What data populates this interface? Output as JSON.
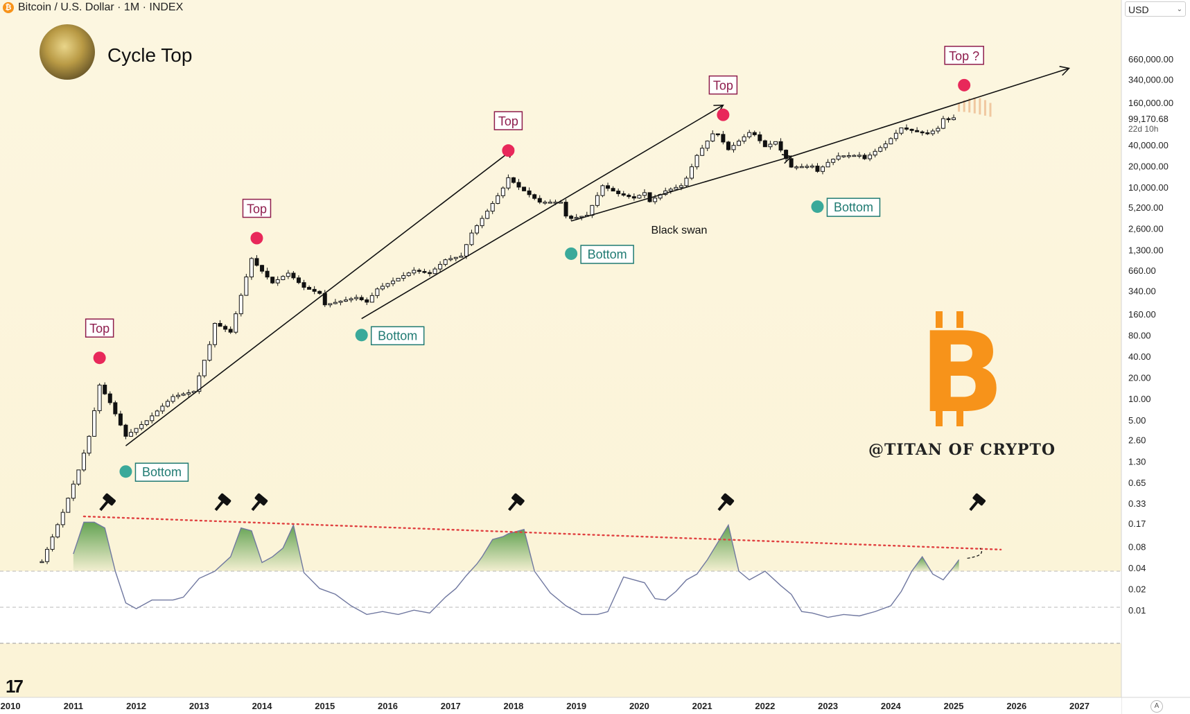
{
  "header": {
    "symbol": "Bitcoin / U.S. Dollar · 1M · INDEX",
    "coin_glyph": "₿",
    "title": "Cycle Top",
    "currency": "USD",
    "currency_chevron": "⌄",
    "tv_logo": "17",
    "auto_button": "A",
    "watermark": "@TITAN OF CRYPTO",
    "btc_logo": "B"
  },
  "colors": {
    "bg_top": "#fcf6e0",
    "bg_bottom": "#fbf3d6",
    "band": "#ffffff",
    "top_dot": "#e8285a",
    "bottom_dot": "#3aa99a",
    "top_box": "#8e1c4c",
    "bottom_box": "#1f7a72",
    "oscillator": "#7078a0",
    "fill": "#5b9e4c",
    "threshold": "#e04040",
    "forecast": "#f0c8a0",
    "btc_orange": "#f7931a"
  },
  "chart_data": {
    "type": "candlestick",
    "title": "Cycle Top",
    "x_axis": {
      "type": "date",
      "range": [
        "2009-11",
        "2027-09"
      ],
      "ticks": [
        "2010",
        "2011",
        "2012",
        "2013",
        "2014",
        "2015",
        "2016",
        "2017",
        "2018",
        "2019",
        "2020",
        "2021",
        "2022",
        "2023",
        "2024",
        "2025",
        "2026",
        "2027"
      ]
    },
    "y_axis": {
      "scale": "log",
      "unit": "USD",
      "range": [
        0.0015,
        1500000
      ],
      "tick_values": [
        660000,
        340000,
        160000,
        40000,
        20000,
        10000,
        5200,
        2600,
        1300,
        660,
        340,
        160,
        80,
        40,
        20,
        10,
        5,
        2.6,
        1.3,
        0.65,
        0.33,
        0.17,
        0.08,
        0.04,
        0.02,
        0.01
      ],
      "tick_labels": [
        "660,000.00",
        "340,000.00",
        "160,000.00",
        "40,000.00",
        "20,000.00",
        "10,000.00",
        "5,200.00",
        "2,600.00",
        "1,300.00",
        "660.00",
        "340.00",
        "160.00",
        "80.00",
        "40.00",
        "20.00",
        "10.00",
        "5.00",
        "2.60",
        "1.30",
        "0.65",
        "0.33",
        "0.17",
        "0.08",
        "0.04",
        "0.02",
        "0.01"
      ],
      "last_price": "99,170.68",
      "countdown": "22d 10h"
    },
    "price_anchors": [
      [
        "2010-07",
        0.05
      ],
      [
        "2010-11",
        0.25
      ],
      [
        "2011-02",
        1
      ],
      [
        "2011-04",
        3
      ],
      [
        "2011-06",
        16
      ],
      [
        "2011-08",
        9
      ],
      [
        "2011-11",
        3
      ],
      [
        "2012-03",
        5
      ],
      [
        "2012-08",
        11
      ],
      [
        "2012-12",
        13
      ],
      [
        "2013-03",
        60
      ],
      [
        "2013-04",
        120
      ],
      [
        "2013-07",
        90
      ],
      [
        "2013-11",
        1000
      ],
      [
        "2013-12",
        800
      ],
      [
        "2014-03",
        450
      ],
      [
        "2014-06",
        620
      ],
      [
        "2014-09",
        390
      ],
      [
        "2014-12",
        320
      ],
      [
        "2015-01",
        220
      ],
      [
        "2015-07",
        280
      ],
      [
        "2015-09",
        240
      ],
      [
        "2015-11",
        370
      ],
      [
        "2016-06",
        680
      ],
      [
        "2016-09",
        610
      ],
      [
        "2016-12",
        960
      ],
      [
        "2017-03",
        1080
      ],
      [
        "2017-05",
        2300
      ],
      [
        "2017-08",
        4700
      ],
      [
        "2017-11",
        10000
      ],
      [
        "2017-12",
        14000
      ],
      [
        "2018-02",
        10300
      ],
      [
        "2018-06",
        6300
      ],
      [
        "2018-10",
        6300
      ],
      [
        "2018-11",
        4000
      ],
      [
        "2018-12",
        3700
      ],
      [
        "2019-03",
        4100
      ],
      [
        "2019-06",
        10800
      ],
      [
        "2019-09",
        8300
      ],
      [
        "2019-12",
        7200
      ],
      [
        "2020-02",
        8600
      ],
      [
        "2020-03",
        6400
      ],
      [
        "2020-06",
        9100
      ],
      [
        "2020-09",
        10800
      ],
      [
        "2020-10",
        13800
      ],
      [
        "2020-12",
        29000
      ],
      [
        "2021-03",
        58800
      ],
      [
        "2021-04",
        57700
      ],
      [
        "2021-06",
        35000
      ],
      [
        "2021-10",
        61300
      ],
      [
        "2021-11",
        57000
      ],
      [
        "2022-01",
        38500
      ],
      [
        "2022-03",
        45500
      ],
      [
        "2022-06",
        19800
      ],
      [
        "2022-10",
        20500
      ],
      [
        "2022-11",
        17200
      ],
      [
        "2023-01",
        23100
      ],
      [
        "2023-03",
        28500
      ],
      [
        "2023-07",
        29200
      ],
      [
        "2023-08",
        26000
      ],
      [
        "2023-12",
        42300
      ],
      [
        "2024-03",
        71300
      ],
      [
        "2024-06",
        62700
      ],
      [
        "2024-08",
        59000
      ],
      [
        "2024-10",
        70300
      ],
      [
        "2024-11",
        96400
      ],
      [
        "2024-12",
        93400
      ],
      [
        "2025-01",
        99170
      ]
    ],
    "forecast": {
      "range": [
        "2025-02",
        "2025-08"
      ],
      "level_range": [
        110000,
        160000
      ]
    },
    "trendlines": [
      {
        "from": [
          "2011-11",
          2.2
        ],
        "to": [
          "2018-01",
          36000
        ]
      },
      {
        "from": [
          "2015-08",
          140
        ],
        "to": [
          "2021-05",
          150000
        ]
      },
      {
        "from": [
          "2018-12",
          3400
        ],
        "to": [
          "2022-06",
          28000
        ]
      },
      {
        "from": [
          "2022-06",
          28000
        ],
        "to": [
          "2026-11",
          500000
        ]
      }
    ],
    "annotations": [
      {
        "kind": "top",
        "text": "Top",
        "date": "2011-06"
      },
      {
        "kind": "top",
        "text": "Top",
        "date": "2013-12"
      },
      {
        "kind": "top",
        "text": "Top",
        "date": "2017-12"
      },
      {
        "kind": "top",
        "text": "Top",
        "date": "2021-05"
      },
      {
        "kind": "top",
        "text": "Top ?",
        "date": "2025-03"
      },
      {
        "kind": "bottom",
        "text": "Bottom",
        "date": "2011-11"
      },
      {
        "kind": "bottom",
        "text": "Bottom",
        "date": "2015-08"
      },
      {
        "kind": "bottom",
        "text": "Bottom",
        "date": "2018-12"
      },
      {
        "kind": "bottom",
        "text": "Bottom",
        "date": "2022-11"
      },
      {
        "kind": "note",
        "text": "Black swan",
        "date": "2020-03"
      }
    ],
    "oscillator": {
      "scale": "relative",
      "range": [
        0,
        1
      ],
      "band": [
        0.0,
        0.5
      ],
      "levels": [
        0.25,
        0.5
      ],
      "threshold_line": {
        "from": [
          "2011-03",
          0.88
        ],
        "to": [
          "2025-10",
          0.65
        ]
      },
      "peaks": [
        "2011-06",
        "2013-04",
        "2013-11",
        "2017-12",
        "2021-04",
        "2025-04"
      ],
      "points": [
        [
          "2011-01",
          0.62
        ],
        [
          "2011-03",
          0.84
        ],
        [
          "2011-05",
          0.84
        ],
        [
          "2011-07",
          0.8
        ],
        [
          "2011-09",
          0.5
        ],
        [
          "2011-11",
          0.28
        ],
        [
          "2012-01",
          0.24
        ],
        [
          "2012-04",
          0.3
        ],
        [
          "2012-08",
          0.3
        ],
        [
          "2012-10",
          0.32
        ],
        [
          "2013-01",
          0.45
        ],
        [
          "2013-04",
          0.5
        ],
        [
          "2013-07",
          0.6
        ],
        [
          "2013-09",
          0.8
        ],
        [
          "2013-11",
          0.78
        ],
        [
          "2014-01",
          0.56
        ],
        [
          "2014-03",
          0.6
        ],
        [
          "2014-05",
          0.66
        ],
        [
          "2014-07",
          0.82
        ],
        [
          "2014-09",
          0.49
        ],
        [
          "2014-12",
          0.38
        ],
        [
          "2015-03",
          0.34
        ],
        [
          "2015-06",
          0.26
        ],
        [
          "2015-09",
          0.2
        ],
        [
          "2015-12",
          0.22
        ],
        [
          "2016-03",
          0.2
        ],
        [
          "2016-06",
          0.23
        ],
        [
          "2016-09",
          0.21
        ],
        [
          "2016-12",
          0.32
        ],
        [
          "2017-02",
          0.38
        ],
        [
          "2017-04",
          0.47
        ],
        [
          "2017-06",
          0.55
        ],
        [
          "2017-07",
          0.6
        ],
        [
          "2017-09",
          0.72
        ],
        [
          "2017-11",
          0.74
        ],
        [
          "2017-12",
          0.76
        ],
        [
          "2018-03",
          0.79
        ],
        [
          "2018-05",
          0.5
        ],
        [
          "2018-08",
          0.35
        ],
        [
          "2018-11",
          0.26
        ],
        [
          "2019-02",
          0.2
        ],
        [
          "2019-05",
          0.2
        ],
        [
          "2019-07",
          0.22
        ],
        [
          "2019-10",
          0.46
        ],
        [
          "2020-02",
          0.42
        ],
        [
          "2020-04",
          0.31
        ],
        [
          "2020-06",
          0.3
        ],
        [
          "2020-08",
          0.36
        ],
        [
          "2020-10",
          0.44
        ],
        [
          "2020-12",
          0.48
        ],
        [
          "2021-02",
          0.58
        ],
        [
          "2021-04",
          0.7
        ],
        [
          "2021-06",
          0.82
        ],
        [
          "2021-08",
          0.5
        ],
        [
          "2021-10",
          0.44
        ],
        [
          "2022-01",
          0.5
        ],
        [
          "2022-04",
          0.4
        ],
        [
          "2022-06",
          0.34
        ],
        [
          "2022-08",
          0.22
        ],
        [
          "2022-10",
          0.21
        ],
        [
          "2023-01",
          0.18
        ],
        [
          "2023-04",
          0.2
        ],
        [
          "2023-07",
          0.19
        ],
        [
          "2023-10",
          0.22
        ],
        [
          "2024-01",
          0.26
        ],
        [
          "2024-03",
          0.36
        ],
        [
          "2024-05",
          0.5
        ],
        [
          "2024-07",
          0.6
        ],
        [
          "2024-09",
          0.48
        ],
        [
          "2024-11",
          0.44
        ],
        [
          "2025-01",
          0.53
        ],
        [
          "2025-02",
          0.58
        ]
      ]
    }
  }
}
